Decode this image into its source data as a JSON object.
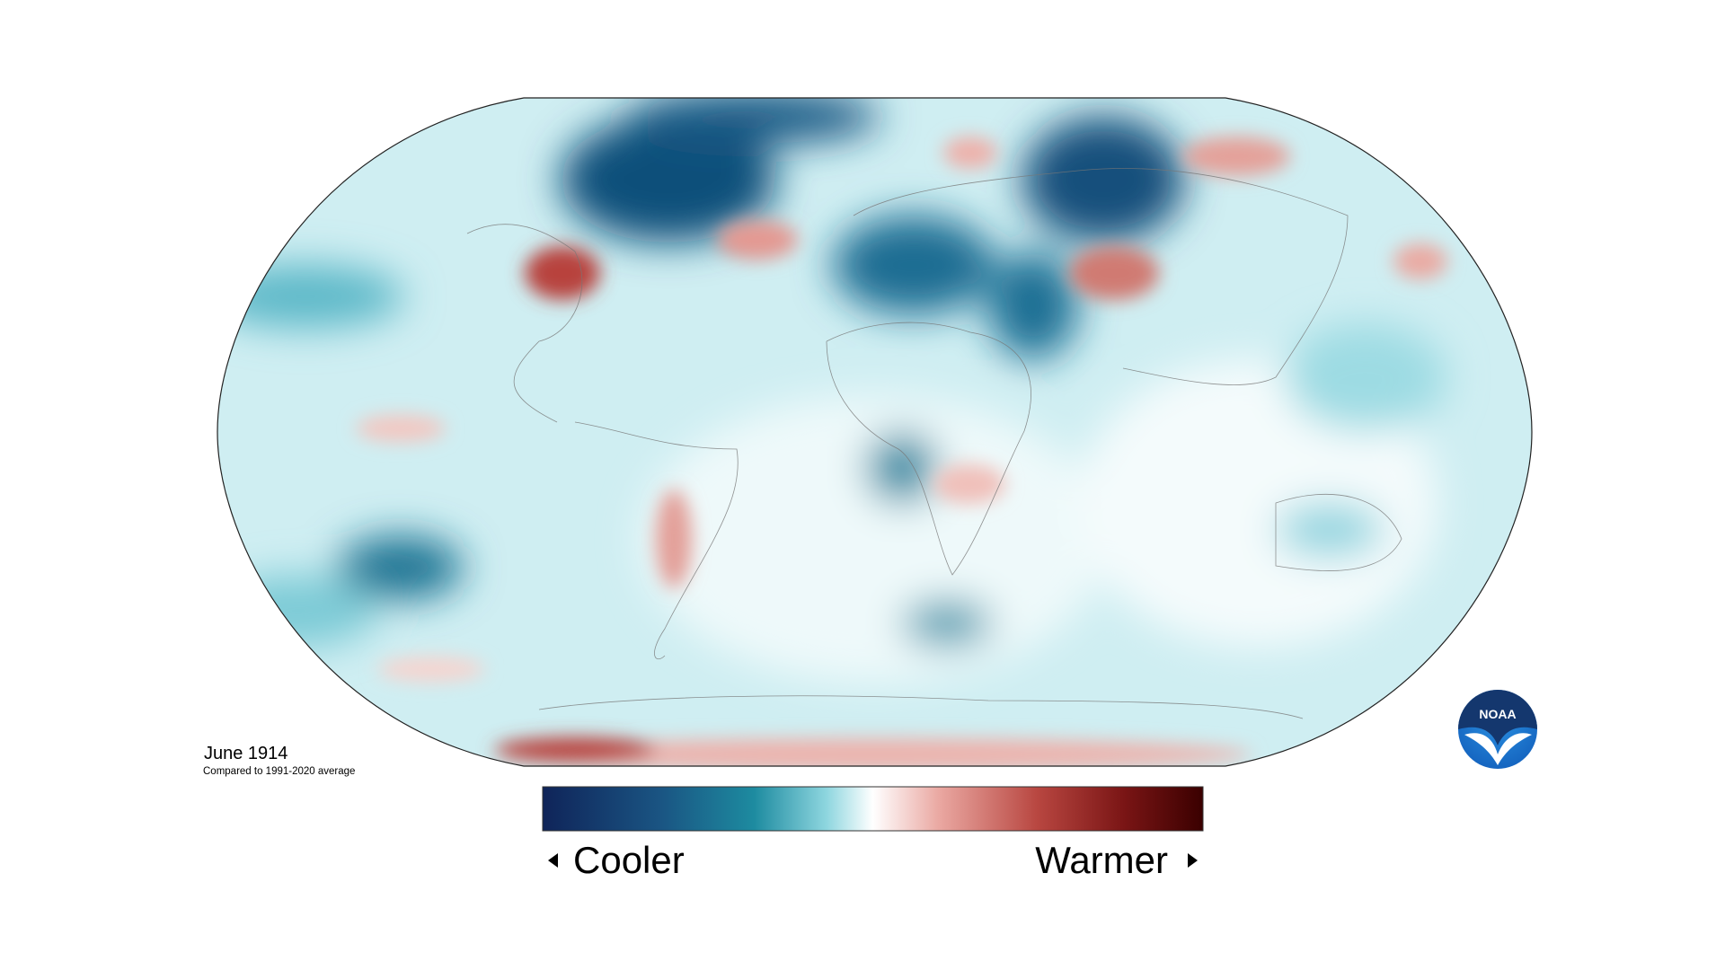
{
  "caption": {
    "title": "June 1914",
    "subtitle": "Compared to 1991-2020 average"
  },
  "legend": {
    "low": "Cooler",
    "high": "Warmer"
  },
  "logo": {
    "text": "NOAA"
  }
}
